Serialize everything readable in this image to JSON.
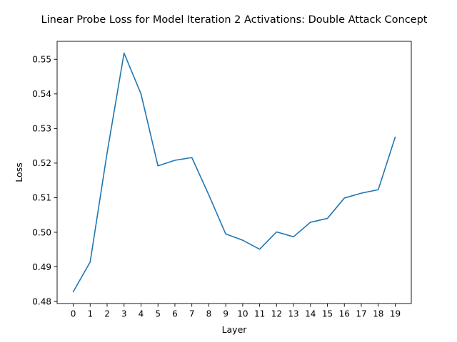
{
  "chart_data": {
    "type": "line",
    "title": "Linear Probe Loss for Model Iteration 2 Activations: Double Attack Concept",
    "xlabel": "Layer",
    "ylabel": "Loss",
    "x": [
      0,
      1,
      2,
      3,
      4,
      5,
      6,
      7,
      8,
      9,
      10,
      11,
      12,
      13,
      14,
      15,
      16,
      17,
      18,
      19
    ],
    "series": [
      {
        "color": "#1f77b4",
        "values": [
          0.4828,
          0.4914,
          0.523,
          0.5518,
          0.54,
          0.5192,
          0.5208,
          0.5216,
          0.5108,
          0.4995,
          0.4977,
          0.4951,
          0.5001,
          0.4987,
          0.5029,
          0.504,
          0.5099,
          0.5113,
          0.5123,
          0.5275
        ]
      }
    ],
    "xlim": [
      -0.95,
      19.95
    ],
    "ylim": [
      0.4794,
      0.5552
    ],
    "yticks": [
      0.48,
      0.49,
      0.5,
      0.51,
      0.52,
      0.53,
      0.54,
      0.55
    ],
    "ytick_labels": [
      "0.48",
      "0.49",
      "0.50",
      "0.51",
      "0.52",
      "0.53",
      "0.54",
      "0.55"
    ],
    "xticks": [
      0,
      1,
      2,
      3,
      4,
      5,
      6,
      7,
      8,
      9,
      10,
      11,
      12,
      13,
      14,
      15,
      16,
      17,
      18,
      19
    ],
    "xtick_labels": [
      "0",
      "1",
      "2",
      "3",
      "4",
      "5",
      "6",
      "7",
      "8",
      "9",
      "10",
      "11",
      "12",
      "13",
      "14",
      "15",
      "16",
      "17",
      "18",
      "19"
    ],
    "grid": false,
    "legend": "none"
  }
}
